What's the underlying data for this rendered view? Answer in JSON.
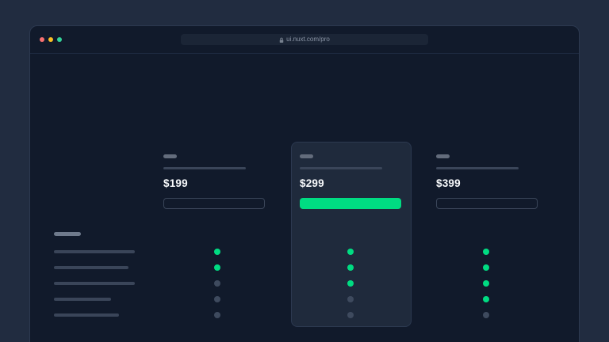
{
  "theme": {
    "accent": "#00dc82",
    "outer_background": "#212c40",
    "window_background": "#111a2b",
    "card_background": "#1f2a3c",
    "border": "#2c3950",
    "skeleton": "#3a4559",
    "skeleton_bright": "#6f7a8c",
    "dot_inactive": "#3e4a5e",
    "traffic_red": "#f87171",
    "traffic_yellow": "#fbbf24",
    "traffic_green": "#34d399"
  },
  "browser": {
    "address": "ui.nuxt.com/pro",
    "window_controls": [
      "close",
      "minimize",
      "maximize"
    ]
  },
  "pricing": {
    "plans": [
      {
        "price": "$199",
        "highlighted": false,
        "features": [
          true,
          true,
          false,
          false,
          false
        ]
      },
      {
        "price": "$299",
        "highlighted": true,
        "features": [
          true,
          true,
          true,
          false,
          false
        ]
      },
      {
        "price": "$399",
        "highlighted": false,
        "features": [
          true,
          true,
          true,
          true,
          false
        ]
      }
    ],
    "feature_rows": 5
  }
}
